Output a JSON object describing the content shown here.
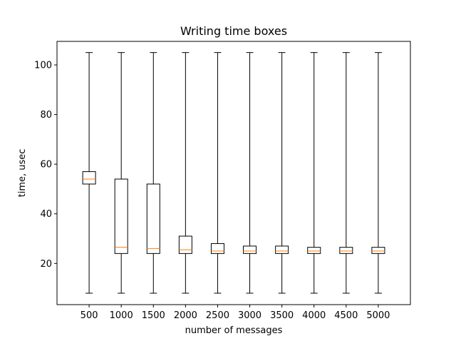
{
  "chart_data": {
    "type": "box",
    "title": "Writing time boxes",
    "xlabel": "number of messages",
    "ylabel": "time, usec",
    "categories": [
      "500",
      "1000",
      "1500",
      "2000",
      "2500",
      "3000",
      "3500",
      "4000",
      "4500",
      "5000"
    ],
    "yticks": [
      20,
      40,
      60,
      80,
      100
    ],
    "ylim": [
      3.4,
      109.5
    ],
    "grid": false,
    "boxes": [
      {
        "whislo": 8,
        "q1": 52,
        "med": 54,
        "q3": 57,
        "whishi": 105
      },
      {
        "whislo": 8,
        "q1": 24,
        "med": 26.5,
        "q3": 54,
        "whishi": 105
      },
      {
        "whislo": 8,
        "q1": 24,
        "med": 26,
        "q3": 52,
        "whishi": 105
      },
      {
        "whislo": 8,
        "q1": 24,
        "med": 25.5,
        "q3": 31,
        "whishi": 105
      },
      {
        "whislo": 8,
        "q1": 24,
        "med": 25,
        "q3": 28,
        "whishi": 105
      },
      {
        "whislo": 8,
        "q1": 24,
        "med": 25,
        "q3": 27,
        "whishi": 105
      },
      {
        "whislo": 8,
        "q1": 24,
        "med": 25,
        "q3": 27,
        "whishi": 105
      },
      {
        "whislo": 8,
        "q1": 24,
        "med": 25,
        "q3": 26.5,
        "whishi": 105
      },
      {
        "whislo": 8,
        "q1": 24,
        "med": 25,
        "q3": 26.5,
        "whishi": 105
      },
      {
        "whislo": 8,
        "q1": 24,
        "med": 25,
        "q3": 26.5,
        "whishi": 105
      }
    ],
    "colors": {
      "box": "#000000",
      "median": "#ff7f0e",
      "axes": "#000000"
    }
  }
}
